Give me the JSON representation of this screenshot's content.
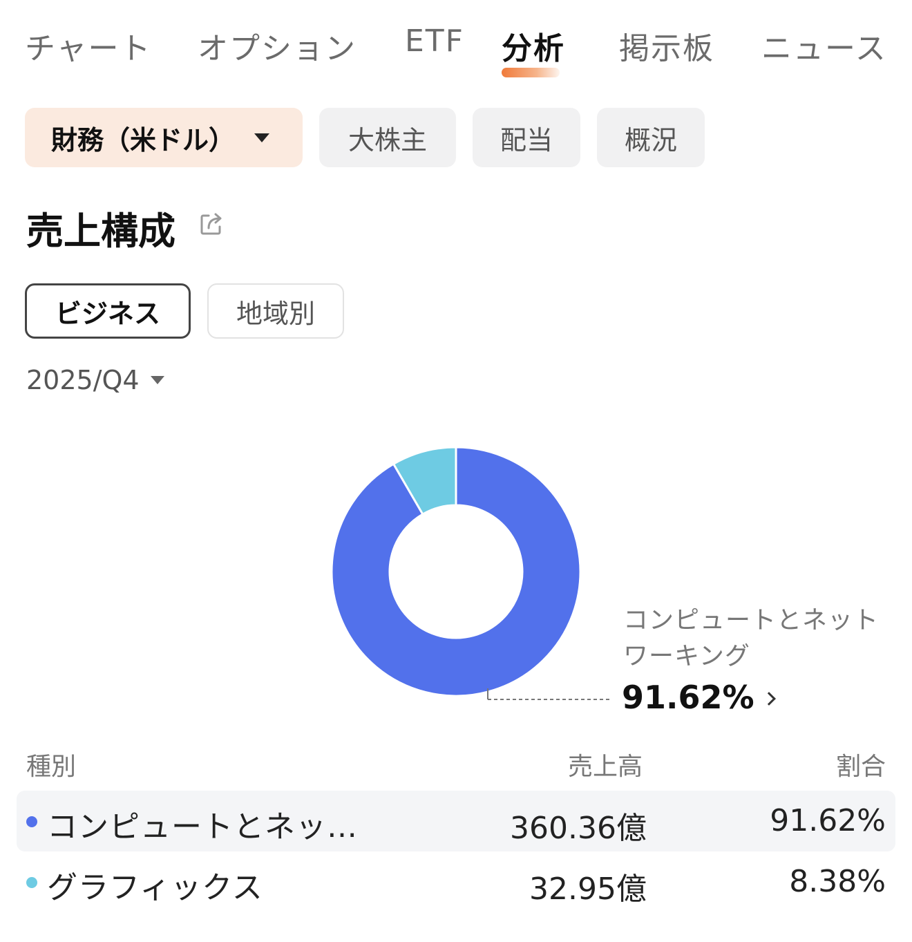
{
  "top_tabs": [
    {
      "label": "チャート"
    },
    {
      "label": "オプション"
    },
    {
      "label": "ETF"
    },
    {
      "label": "分析",
      "active": true
    },
    {
      "label": "掲示板"
    },
    {
      "label": "ニュース"
    }
  ],
  "sub_tabs": {
    "primary": "財務（米ドル）",
    "others": [
      "大株主",
      "配当",
      "概況"
    ]
  },
  "section": {
    "title": "売上構成",
    "share_icon": "share-icon"
  },
  "toggle": {
    "business": "ビジネス",
    "region": "地域別"
  },
  "period": "2025/Q4",
  "callout": {
    "label": "コンピュートとネットワーキング",
    "value": "91.62%"
  },
  "table": {
    "headers": {
      "type": "種別",
      "revenue": "売上高",
      "ratio": "割合"
    },
    "rows": [
      {
        "name": "コンピュートとネッ…",
        "revenue": "360.36億",
        "ratio": "91.62%",
        "color": "#5271eb"
      },
      {
        "name": "グラフィックス",
        "revenue": "32.95億",
        "ratio": "8.38%",
        "color": "#6ecbe3"
      }
    ]
  },
  "chart_data": {
    "type": "pie",
    "categories": [
      "コンピュートとネットワーキング",
      "グラフィックス"
    ],
    "values": [
      91.62,
      8.38
    ],
    "colors": [
      "#5271eb",
      "#6ecbe3"
    ],
    "donut": true,
    "title": "",
    "legend": "table-below"
  }
}
